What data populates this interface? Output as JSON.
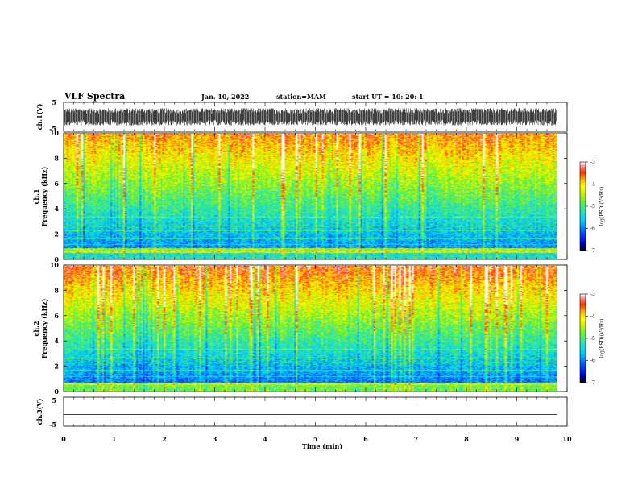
{
  "header": {
    "title": "VLF Spectra",
    "date": "Jan. 10, 2022",
    "station": "station=MAM",
    "start_ut": "start UT =  10: 20: 1"
  },
  "colors": {
    "colormap": [
      "#000000",
      "#0000cc",
      "#0050ff",
      "#00c8ff",
      "#28e6b4",
      "#64f03c",
      "#c8f000",
      "#ffff00",
      "#ffb400",
      "#ff3200",
      "#ff8c8c",
      "#ffffff"
    ],
    "waveform": "#000000"
  },
  "chart_data": [
    {
      "type": "line",
      "name": "ch1-waveform",
      "ylabel": "ch.1(V)",
      "ylim": [
        -5,
        5
      ],
      "yticks": [
        "5",
        "-5"
      ],
      "xlim": [
        0,
        10
      ],
      "amplitude_range": [
        -3,
        3
      ],
      "data_end_min": 9.8
    },
    {
      "type": "heatmap",
      "name": "ch1-spectrogram",
      "ylabel": "ch.1",
      "ylabel2": "Frequency (kHz)",
      "ylim": [
        0,
        10
      ],
      "yticks": [
        "0",
        "2",
        "4",
        "6",
        "8",
        "10"
      ],
      "xlim": [
        0,
        10
      ],
      "data_end_min": 9.8,
      "colorbar": {
        "label": "log(PSD)(V²/Hz)",
        "ticks": [
          "-3",
          "-4",
          "-5",
          "-6",
          "-7"
        ],
        "range": [
          -7,
          -3
        ]
      }
    },
    {
      "type": "heatmap",
      "name": "ch2-spectrogram",
      "ylabel": "ch.2",
      "ylabel2": "Frequency (kHz)",
      "ylim": [
        0,
        10
      ],
      "yticks": [
        "0",
        "2",
        "4",
        "6",
        "8",
        "10"
      ],
      "xlim": [
        0,
        10
      ],
      "data_end_min": 9.8,
      "colorbar": {
        "label": "log(PSD)(V²/Hz)",
        "ticks": [
          "-3",
          "-4",
          "-5",
          "-6",
          "-7"
        ],
        "range": [
          -7,
          -3
        ]
      }
    },
    {
      "type": "line",
      "name": "ch3-waveform",
      "ylabel": "ch.3(V)",
      "ylim": [
        -5,
        5
      ],
      "yticks": [
        "5",
        "-5"
      ],
      "xlim": [
        0,
        10
      ],
      "x": [
        0,
        9.8
      ],
      "y": [
        -1,
        -1
      ],
      "xlabel": "Time (min)",
      "xticks": [
        "0",
        "1",
        "2",
        "3",
        "4",
        "5",
        "6",
        "7",
        "8",
        "9",
        "10"
      ]
    }
  ]
}
